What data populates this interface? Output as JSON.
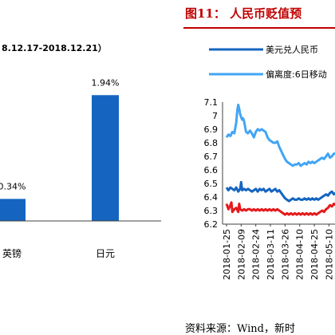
{
  "colors": {
    "bar": "#1565C0",
    "usd_cny": "#1565C0",
    "deviation": "#42A5F5",
    "red_series": "#E41A1C",
    "figure_title": "#C00000",
    "axis": "#404040",
    "title_rule": "#C00000"
  },
  "left_panel": {
    "subtitle_fragment": "8.12.17-2018.12.21）"
  },
  "right_panel": {
    "figure_title": "图11： 人民币贬值预",
    "source_text": "资料来源：Wind，新时"
  },
  "chart_data": [
    {
      "type": "bar",
      "categories": [
        "英镑",
        "日元"
      ],
      "values": [
        0.34,
        1.94
      ],
      "value_labels": [
        "0.34%",
        "1.94%"
      ],
      "ylim": [
        0,
        2.3
      ]
    },
    {
      "type": "line",
      "ylim": [
        6.2,
        7.1
      ],
      "yticks": [
        "6.2",
        "6.3",
        "6.4",
        "6.5",
        "6.6",
        "6.7",
        "6.8",
        "6.9",
        "7",
        "7.1"
      ],
      "x_tick_labels": [
        "2018-01-25",
        "2018-02-09",
        "2018-02-24",
        "2018-03-11",
        "2018-03-26",
        "2018-04-10",
        "2018-04-25",
        "2018-05-10"
      ],
      "x_range_days": [
        0,
        112
      ],
      "series": [
        {
          "name": "美元兑人民币",
          "legend_text": "美元兑人民币",
          "points": [
            [
              0,
              6.47
            ],
            [
              2,
              6.45
            ],
            [
              4,
              6.47
            ],
            [
              6,
              6.46
            ],
            [
              8,
              6.45
            ],
            [
              10,
              6.47
            ],
            [
              12,
              6.44
            ],
            [
              14,
              6.46
            ],
            [
              15,
              6.51
            ],
            [
              16,
              6.45
            ],
            [
              18,
              6.46
            ],
            [
              20,
              6.45
            ],
            [
              22,
              6.46
            ],
            [
              24,
              6.45
            ],
            [
              26,
              6.44
            ],
            [
              28,
              6.45
            ],
            [
              30,
              6.46
            ],
            [
              32,
              6.44
            ],
            [
              34,
              6.46
            ],
            [
              36,
              6.45
            ],
            [
              38,
              6.46
            ],
            [
              40,
              6.44
            ],
            [
              42,
              6.45
            ],
            [
              44,
              6.46
            ],
            [
              46,
              6.44
            ],
            [
              48,
              6.45
            ],
            [
              50,
              6.46
            ],
            [
              52,
              6.44
            ],
            [
              54,
              6.45
            ],
            [
              56,
              6.43
            ],
            [
              58,
              6.41
            ],
            [
              60,
              6.39
            ],
            [
              62,
              6.38
            ],
            [
              64,
              6.37
            ],
            [
              66,
              6.38
            ],
            [
              68,
              6.39
            ],
            [
              70,
              6.38
            ],
            [
              72,
              6.38
            ],
            [
              74,
              6.39
            ],
            [
              76,
              6.38
            ],
            [
              78,
              6.38
            ],
            [
              80,
              6.39
            ],
            [
              82,
              6.38
            ],
            [
              84,
              6.39
            ],
            [
              86,
              6.38
            ],
            [
              88,
              6.39
            ],
            [
              90,
              6.38
            ],
            [
              92,
              6.39
            ],
            [
              94,
              6.38
            ],
            [
              96,
              6.39
            ],
            [
              98,
              6.4
            ],
            [
              100,
              6.41
            ],
            [
              102,
              6.42
            ],
            [
              104,
              6.41
            ],
            [
              106,
              6.43
            ],
            [
              108,
              6.44
            ],
            [
              110,
              6.42
            ],
            [
              112,
              6.43
            ]
          ]
        },
        {
          "name": "偏离度:6日移动",
          "legend_text": "偏离度:6日移动",
          "points": [
            [
              0,
              6.84
            ],
            [
              2,
              6.86
            ],
            [
              4,
              6.85
            ],
            [
              6,
              6.88
            ],
            [
              8,
              6.87
            ],
            [
              10,
              6.95
            ],
            [
              11,
              7.04
            ],
            [
              12,
              7.08
            ],
            [
              13,
              7.05
            ],
            [
              14,
              7.01
            ],
            [
              15,
              6.99
            ],
            [
              16,
              6.97
            ],
            [
              17,
              6.98
            ],
            [
              18,
              6.96
            ],
            [
              19,
              6.92
            ],
            [
              20,
              6.88
            ],
            [
              22,
              6.87
            ],
            [
              24,
              6.89
            ],
            [
              26,
              6.87
            ],
            [
              28,
              6.84
            ],
            [
              30,
              6.88
            ],
            [
              32,
              6.9
            ],
            [
              34,
              6.89
            ],
            [
              36,
              6.9
            ],
            [
              38,
              6.89
            ],
            [
              40,
              6.88
            ],
            [
              42,
              6.84
            ],
            [
              44,
              6.82
            ],
            [
              46,
              6.81
            ],
            [
              48,
              6.8
            ],
            [
              50,
              6.8
            ],
            [
              52,
              6.81
            ],
            [
              54,
              6.77
            ],
            [
              56,
              6.74
            ],
            [
              58,
              6.71
            ],
            [
              60,
              6.68
            ],
            [
              62,
              6.66
            ],
            [
              64,
              6.65
            ],
            [
              66,
              6.64
            ],
            [
              68,
              6.63
            ],
            [
              70,
              6.64
            ],
            [
              72,
              6.64
            ],
            [
              74,
              6.65
            ],
            [
              76,
              6.63
            ],
            [
              78,
              6.64
            ],
            [
              80,
              6.65
            ],
            [
              82,
              6.64
            ],
            [
              84,
              6.66
            ],
            [
              86,
              6.65
            ],
            [
              88,
              6.66
            ],
            [
              90,
              6.65
            ],
            [
              92,
              6.66
            ],
            [
              94,
              6.67
            ],
            [
              96,
              6.68
            ],
            [
              98,
              6.69
            ],
            [
              100,
              6.68
            ],
            [
              102,
              6.7
            ],
            [
              104,
              6.72
            ],
            [
              106,
              6.69
            ],
            [
              108,
              6.7
            ],
            [
              110,
              6.72
            ],
            [
              112,
              6.72
            ]
          ]
        },
        {
          "points": [
            [
              0,
              6.35
            ],
            [
              2,
              6.31
            ],
            [
              4,
              6.34
            ],
            [
              5,
              6.36
            ],
            [
              6,
              6.29
            ],
            [
              8,
              6.31
            ],
            [
              10,
              6.32
            ],
            [
              12,
              6.29
            ],
            [
              13,
              6.35
            ],
            [
              14,
              6.31
            ],
            [
              16,
              6.3
            ],
            [
              18,
              6.31
            ],
            [
              20,
              6.3
            ],
            [
              22,
              6.31
            ],
            [
              24,
              6.31
            ],
            [
              26,
              6.3
            ],
            [
              28,
              6.31
            ],
            [
              30,
              6.3
            ],
            [
              32,
              6.31
            ],
            [
              34,
              6.3
            ],
            [
              36,
              6.31
            ],
            [
              38,
              6.3
            ],
            [
              40,
              6.31
            ],
            [
              42,
              6.3
            ],
            [
              44,
              6.31
            ],
            [
              46,
              6.3
            ],
            [
              48,
              6.31
            ],
            [
              50,
              6.3
            ],
            [
              52,
              6.31
            ],
            [
              54,
              6.3
            ],
            [
              56,
              6.29
            ],
            [
              58,
              6.28
            ],
            [
              60,
              6.27
            ],
            [
              62,
              6.28
            ],
            [
              64,
              6.27
            ],
            [
              66,
              6.28
            ],
            [
              68,
              6.27
            ],
            [
              70,
              6.28
            ],
            [
              72,
              6.27
            ],
            [
              74,
              6.28
            ],
            [
              76,
              6.27
            ],
            [
              78,
              6.28
            ],
            [
              80,
              6.27
            ],
            [
              82,
              6.28
            ],
            [
              84,
              6.27
            ],
            [
              86,
              6.28
            ],
            [
              88,
              6.27
            ],
            [
              90,
              6.28
            ],
            [
              92,
              6.27
            ],
            [
              94,
              6.28
            ],
            [
              96,
              6.29
            ],
            [
              98,
              6.3
            ],
            [
              100,
              6.29
            ],
            [
              102,
              6.31
            ],
            [
              104,
              6.32
            ],
            [
              106,
              6.34
            ],
            [
              108,
              6.33
            ],
            [
              110,
              6.35
            ],
            [
              112,
              6.34
            ]
          ]
        }
      ]
    }
  ]
}
